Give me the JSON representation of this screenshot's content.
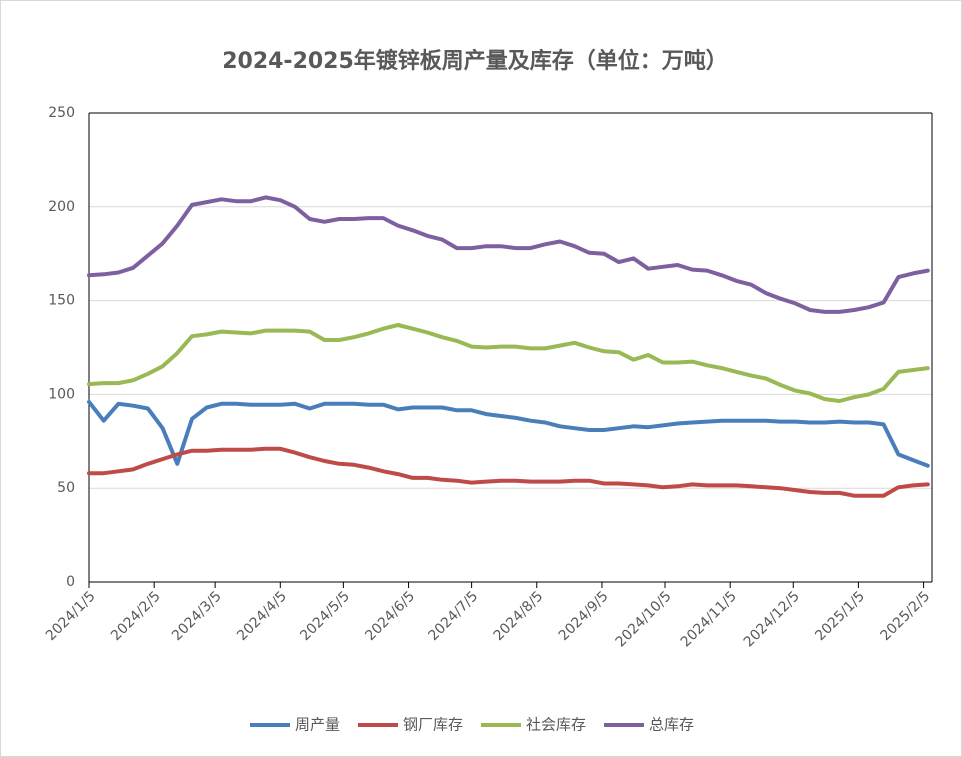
{
  "chart_data": {
    "type": "line",
    "title": "2024-2025年镀锌板周产量及库存（单位：万吨）",
    "x": [
      "2024-01-05",
      "2024-01-12",
      "2024-01-19",
      "2024-01-26",
      "2024-02-02",
      "2024-02-09",
      "2024-02-16",
      "2024-02-23",
      "2024-03-01",
      "2024-03-08",
      "2024-03-15",
      "2024-03-22",
      "2024-03-29",
      "2024-04-05",
      "2024-04-12",
      "2024-04-19",
      "2024-04-26",
      "2024-05-03",
      "2024-05-10",
      "2024-05-17",
      "2024-05-24",
      "2024-05-31",
      "2024-06-07",
      "2024-06-14",
      "2024-06-21",
      "2024-06-28",
      "2024-07-05",
      "2024-07-12",
      "2024-07-19",
      "2024-07-26",
      "2024-08-02",
      "2024-08-09",
      "2024-08-16",
      "2024-08-23",
      "2024-08-30",
      "2024-09-06",
      "2024-09-13",
      "2024-09-20",
      "2024-09-27",
      "2024-10-04",
      "2024-10-11",
      "2024-10-18",
      "2024-10-25",
      "2024-11-01",
      "2024-11-08",
      "2024-11-15",
      "2024-11-22",
      "2024-11-29",
      "2024-12-06",
      "2024-12-13",
      "2024-12-20",
      "2024-12-27",
      "2025-01-03",
      "2025-01-10",
      "2025-01-17",
      "2025-01-24",
      "2025-01-31",
      "2025-02-07"
    ],
    "series": [
      {
        "name": "周产量",
        "color": "#4a7ebb",
        "values": [
          96,
          86,
          95,
          94,
          92.5,
          82,
          63,
          87,
          93,
          95,
          95,
          94.5,
          94.5,
          94.5,
          95,
          92.5,
          95,
          95,
          95,
          94.5,
          94.5,
          92,
          93,
          93,
          93,
          91.5,
          91.5,
          89.5,
          88.5,
          87.5,
          86,
          85,
          83,
          82,
          81,
          81,
          82,
          83,
          82.5,
          83.5,
          84.5,
          85,
          85.5,
          86,
          86,
          86,
          86,
          85.5,
          85.5,
          85,
          85,
          85.5,
          85,
          85,
          84,
          68,
          65,
          62
        ]
      },
      {
        "name": "钢厂库存",
        "color": "#be4b48",
        "values": [
          58,
          58,
          59,
          60,
          63,
          65.5,
          68,
          70,
          70,
          70.5,
          70.5,
          70.5,
          71,
          71,
          69,
          66.5,
          64.5,
          63,
          62.5,
          61,
          59,
          57.5,
          55.5,
          55.5,
          54.5,
          54,
          53,
          53.5,
          54,
          54,
          53.5,
          53.5,
          53.5,
          54,
          54,
          52.5,
          52.5,
          52,
          51.5,
          50.5,
          51,
          52,
          51.5,
          51.5,
          51.5,
          51,
          50.5,
          50,
          49,
          48,
          47.5,
          47.5,
          46,
          46,
          46,
          50.5,
          51.5,
          52
        ]
      },
      {
        "name": "社会库存",
        "color": "#98b954",
        "values": [
          105.5,
          106,
          106,
          107.5,
          111,
          115,
          122,
          131,
          132,
          133.5,
          133,
          132.5,
          134,
          134,
          134,
          133.5,
          129,
          129,
          130.5,
          132.5,
          135,
          137,
          135,
          133,
          130.5,
          128.5,
          125.5,
          125,
          125.5,
          125.5,
          124.5,
          124.5,
          126,
          127.5,
          125,
          123,
          122.5,
          118.5,
          121,
          117,
          117,
          117.5,
          115.5,
          114,
          112,
          110,
          108.5,
          105,
          102,
          100.5,
          97.5,
          96.5,
          98.5,
          100,
          103,
          112,
          113,
          114
        ]
      },
      {
        "name": "总库存",
        "color": "#7d60a0",
        "values": [
          163.5,
          164,
          165,
          167.5,
          174,
          180.5,
          190,
          201,
          202.5,
          204,
          203,
          203,
          205,
          203.5,
          200,
          193.5,
          192,
          193.5,
          193.5,
          194,
          194,
          190,
          187.5,
          184.5,
          182.5,
          178,
          178,
          179,
          179,
          178,
          178,
          180,
          181.5,
          179,
          175.5,
          175,
          170.5,
          172.5,
          167,
          168,
          169,
          166.5,
          166,
          163.5,
          160.5,
          158.5,
          154,
          151,
          148.5,
          145,
          144,
          144,
          145,
          146.5,
          149,
          162.5,
          164.5,
          166
        ]
      }
    ],
    "xlim": [
      "2024-01-05",
      "2025-02-09"
    ],
    "xticks": [
      {
        "value": "2024-01-05",
        "label": "2024/1/5"
      },
      {
        "value": "2024-02-05",
        "label": "2024/2/5"
      },
      {
        "value": "2024-03-05",
        "label": "2024/3/5"
      },
      {
        "value": "2024-04-05",
        "label": "2024/4/5"
      },
      {
        "value": "2024-05-05",
        "label": "2024/5/5"
      },
      {
        "value": "2024-06-05",
        "label": "2024/6/5"
      },
      {
        "value": "2024-07-05",
        "label": "2024/7/5"
      },
      {
        "value": "2024-08-05",
        "label": "2024/8/5"
      },
      {
        "value": "2024-09-05",
        "label": "2024/9/5"
      },
      {
        "value": "2024-10-05",
        "label": "2024/10/5"
      },
      {
        "value": "2024-11-05",
        "label": "2024/11/5"
      },
      {
        "value": "2024-12-05",
        "label": "2024/12/5"
      },
      {
        "value": "2025-01-05",
        "label": "2025/1/5"
      },
      {
        "value": "2025-02-05",
        "label": "2025/2/5"
      }
    ],
    "ylim": [
      0,
      250
    ],
    "yticks": [
      0,
      50,
      100,
      150,
      200,
      250
    ],
    "grid": true,
    "legend": "bottom"
  }
}
